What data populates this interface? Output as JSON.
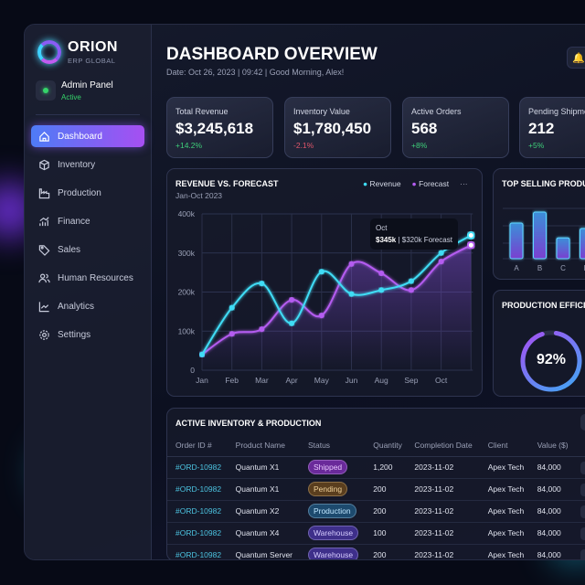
{
  "brand": {
    "name": "ORION",
    "subtitle": "ERP GLOBAL"
  },
  "user": {
    "role": "Admin Panel",
    "status": "Active"
  },
  "sidebar": {
    "items": [
      {
        "label": "Dashboard",
        "icon": "home-icon",
        "active": true
      },
      {
        "label": "Inventory",
        "icon": "box-icon"
      },
      {
        "label": "Production",
        "icon": "factory-icon"
      },
      {
        "label": "Finance",
        "icon": "finance-icon"
      },
      {
        "label": "Sales",
        "icon": "tag-icon"
      },
      {
        "label": "Human Resources",
        "icon": "users-icon"
      },
      {
        "label": "Analytics",
        "icon": "line-chart-icon"
      },
      {
        "label": "Settings",
        "icon": "gear-icon"
      }
    ]
  },
  "header": {
    "title": "DASHBOARD OVERVIEW",
    "subtitle": "Date: Oct 26, 2023 | 09:42 | Good Morning, Alex!",
    "bell_icon": "bell-icon"
  },
  "kpis": [
    {
      "label": "Total Revenue",
      "value": "$3,245,618",
      "delta": "+14.2%",
      "color": "#3ecf7a"
    },
    {
      "label": "Inventory Value",
      "value": "$1,780,450",
      "delta": "-2.1%",
      "color": "#e0566b"
    },
    {
      "label": "Active Orders",
      "value": "568",
      "delta": "+8%",
      "color": "#3ecf7a"
    },
    {
      "label": "Pending Shipments",
      "value": "212",
      "delta": "+5%",
      "color": "#3ecf7a"
    }
  ],
  "chart_data": [
    {
      "type": "line",
      "title": "REVENUE VS. FORECAST",
      "subtitle": "Jan-Oct 2023",
      "categories": [
        "Jan",
        "Feb",
        "Mar",
        "Apr",
        "May",
        "Jun",
        "Aug",
        "Sep",
        "Oct",
        ""
      ],
      "series": [
        {
          "name": "Revenue",
          "color": "#3fdcf5",
          "values": [
            40,
            160,
            222,
            120,
            252,
            195,
            205,
            228,
            300,
            345
          ]
        },
        {
          "name": "Forecast",
          "color": "#b45cf0",
          "values": [
            40,
            93,
            105,
            180,
            140,
            272,
            248,
            205,
            278,
            320
          ]
        }
      ],
      "yticks": [
        "0",
        "100k",
        "200k",
        "300k",
        "400k"
      ],
      "ylim": [
        0,
        400
      ],
      "grid": true,
      "legend": "top-right",
      "tooltip": {
        "title": "Oct",
        "value": "$345k",
        "rest": "| $320k Forecast"
      }
    },
    {
      "type": "bar",
      "title": "TOP SELLING PRODUCTS",
      "categories": [
        "A",
        "B",
        "C",
        "D"
      ],
      "values": [
        65,
        85,
        38,
        55
      ]
    }
  ],
  "efficiency": {
    "title": "PRODUCTION EFFICIENCY",
    "value": 92,
    "label": "92%"
  },
  "table": {
    "title": "ACTIVE INVENTORY & PRODUCTION",
    "columns": [
      "Order ID #",
      "Product Name",
      "Status",
      "Quantity",
      "Completion Date",
      "Client",
      "Value ($)"
    ],
    "rows": [
      {
        "id": "#ORD-10982",
        "product": "Quantum X1",
        "status": "Shipped",
        "qty": "1,200",
        "date": "2023-11-02",
        "client": "Apex Tech",
        "value": "84,000"
      },
      {
        "id": "#ORD-10982",
        "product": "Quantum X1",
        "status": "Pending",
        "qty": "200",
        "date": "2023-11-02",
        "client": "Apex Tech",
        "value": "84,000"
      },
      {
        "id": "#ORD-10982",
        "product": "Quantum X2",
        "status": "Production",
        "qty": "200",
        "date": "2023-11-02",
        "client": "Apex Tech",
        "value": "84,000"
      },
      {
        "id": "#ORD-10982",
        "product": "Quantum X4",
        "status": "Warehouse",
        "qty": "100",
        "date": "2023-11-02",
        "client": "Apex Tech",
        "value": "84,000"
      },
      {
        "id": "#ORD-10982",
        "product": "Quantum Server",
        "status": "Warehouse",
        "qty": "200",
        "date": "2023-11-02",
        "client": "Apex Tech",
        "value": "84,000"
      }
    ],
    "more": "···"
  },
  "status_colors": {
    "Shipped": [
      "#6a2a9a",
      "#e8c6ff"
    ],
    "Pending": [
      "#5a3e1e",
      "#f0d29a"
    ],
    "Production": [
      "#1d4a6e",
      "#bfe6ff"
    ],
    "Warehouse": [
      "#3e2f8a",
      "#d6ccff"
    ]
  }
}
